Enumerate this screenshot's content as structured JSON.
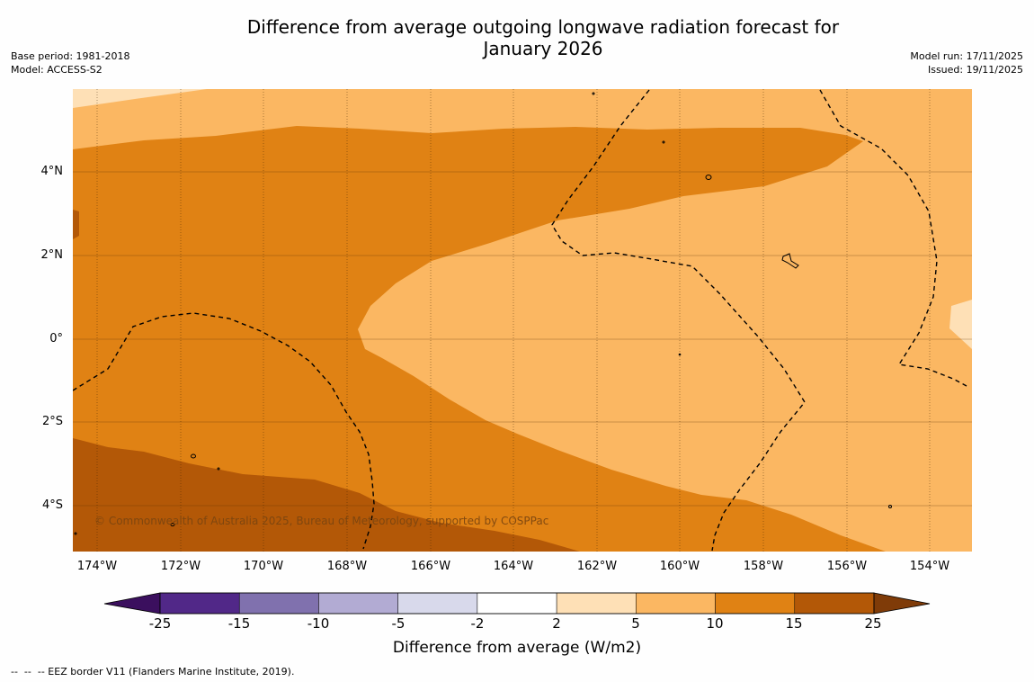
{
  "title": "Difference from average outgoing longwave radiation forecast for\nJanuary 2026",
  "meta_left": {
    "base_period": "Base period: 1981-2018",
    "model": "Model: ACCESS-S2"
  },
  "meta_right": {
    "model_run": "Model run: 17/11/2025",
    "issued": "Issued: 19/11/2025"
  },
  "axes": {
    "y_ticks": [
      "4°N",
      "2°N",
      "0°",
      "2°S",
      "4°S"
    ],
    "x_ticks": [
      "174°W",
      "172°W",
      "170°W",
      "168°W",
      "166°W",
      "164°W",
      "162°W",
      "160°W",
      "158°W",
      "156°W",
      "154°W"
    ]
  },
  "copyright": "© Commonwealth of Australia 2025, Bureau of Meteorology, supported by COSPPac",
  "legend": {
    "title": "Difference from average (W/m2)",
    "labels": [
      "-25",
      "-15",
      "-10",
      "-5",
      "-2",
      "2",
      "5",
      "10",
      "15",
      "25"
    ],
    "colors": [
      "#4a1070",
      "#512888",
      "#8071ae",
      "#b2abd3",
      "#d8d9eb",
      "#ffffff",
      "#fee0b6",
      "#fbb762",
      "#e08214",
      "#b35807",
      "#7f3b08"
    ]
  },
  "footnote": "--  --  -- EEZ border V11 (Flanders Marine Institute, 2019).",
  "map_colors": {
    "band_2_5": "#fee0b6",
    "band_5_10": "#fbb762",
    "band_10_15": "#e08214",
    "band_15_25": "#b35807"
  }
}
